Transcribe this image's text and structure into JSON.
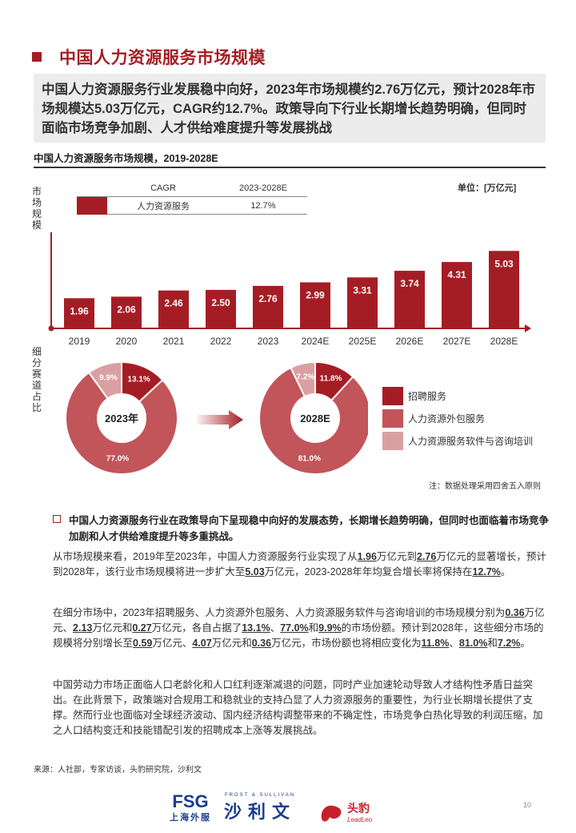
{
  "page": {
    "title": "中国人力资源服务市场规模",
    "summary": "中国人力资源服务行业发展稳中向好，2023年市场规模约2.76万亿元，预计2028年市场规模达5.03万亿元，CAGR约12.7%。政策导向下行业长期增长趋势明确，但同时面临市场竞争加剧、人才供给难度提升等发展挑战",
    "chart_title": "中国人力资源服务市场规模，2019-2028E",
    "left_label_top": "市场规模",
    "left_label_bottom": "细分赛道占比",
    "unit": "单位：[万亿元]",
    "cagr_header": "CAGR",
    "cagr_period": "2023-2028E",
    "cagr_row_label": "人力资源服务",
    "cagr_row_value": "12.7%",
    "note": "注：数据处理采用四舍五入原则",
    "source": "来源：人社部，专家访谈，头豹研究院，沙利文",
    "page_number": "10"
  },
  "chart_data": [
    {
      "type": "bar",
      "categories": [
        "2019",
        "2020",
        "2021",
        "2022",
        "2023",
        "2024E",
        "2025E",
        "2026E",
        "2027E",
        "2028E"
      ],
      "values": [
        1.96,
        2.06,
        2.46,
        2.5,
        2.76,
        2.99,
        3.31,
        3.74,
        4.31,
        5.03
      ],
      "ylabel": "市场规模",
      "unit": "万亿元",
      "color": "#a51d24"
    },
    {
      "type": "pie",
      "title": "2023年",
      "labels": [
        "招聘服务",
        "人力资源外包服务",
        "人力资源服务软件与咨询培训"
      ],
      "values": [
        13.1,
        77.0,
        9.9
      ],
      "value_labels": [
        "13.1%",
        "77.0%",
        "9.9%"
      ],
      "colors": [
        "#a51d24",
        "#c1555a",
        "#daa0a1"
      ]
    },
    {
      "type": "pie",
      "title": "2028E",
      "labels": [
        "招聘服务",
        "人力资源外包服务",
        "人力资源服务软件与咨询培训"
      ],
      "values": [
        11.8,
        81.0,
        7.2
      ],
      "value_labels": [
        "11.8%",
        "81.0%",
        "7.2%"
      ],
      "colors": [
        "#a51d24",
        "#c1555a",
        "#daa0a1"
      ]
    }
  ],
  "pie_legend": [
    {
      "label": "招聘服务",
      "color": "#a51d24"
    },
    {
      "label": "人力资源外包服务",
      "color": "#c1555a"
    },
    {
      "label": "人力资源服务软件与咨询培训",
      "color": "#daa0a1"
    }
  ],
  "bullet": "中国人力资源服务行业在政策导向下呈现稳中向好的发展态势，长期增长趋势明确，但同时也面临着市场竞争加剧和人才供给难度提升等多重挑战。",
  "paragraphs": [
    {
      "segments": [
        {
          "t": "从市场规模来看，2019年至2023年，中国人力资源服务行业实现了从"
        },
        {
          "t": "1.96",
          "u": true
        },
        {
          "t": "万亿元到"
        },
        {
          "t": "2.76",
          "u": true
        },
        {
          "t": "万亿元的显著增长，预计到2028年，该行业市场规模将进一步扩大至"
        },
        {
          "t": "5.03",
          "u": true
        },
        {
          "t": "万亿元，2023-2028年年均复合增长率将保持在"
        },
        {
          "t": "12.7%",
          "u": true
        },
        {
          "t": "。"
        }
      ]
    },
    {
      "segments": [
        {
          "t": "在细分市场中，2023年招聘服务、人力资源外包服务、人力资源服务软件与咨询培训的市场规模分别为"
        },
        {
          "t": "0.36",
          "u": true
        },
        {
          "t": "万亿元、"
        },
        {
          "t": "2.13",
          "u": true
        },
        {
          "t": "万亿元和"
        },
        {
          "t": "0.27",
          "u": true
        },
        {
          "t": "万亿元，各自占据了"
        },
        {
          "t": "13.1%",
          "u": true
        },
        {
          "t": "、"
        },
        {
          "t": "77.0%",
          "u": true
        },
        {
          "t": "和"
        },
        {
          "t": "9.9%",
          "u": true
        },
        {
          "t": "的市场份额。预计到2028年，这些细分市场的规模将分别增长至"
        },
        {
          "t": "0.59",
          "u": true
        },
        {
          "t": "万亿元、"
        },
        {
          "t": "4.07",
          "u": true
        },
        {
          "t": "万亿元和"
        },
        {
          "t": "0.36",
          "u": true
        },
        {
          "t": "万亿元，市场份额也将相应变化为"
        },
        {
          "t": "11.8%",
          "u": true
        },
        {
          "t": "、"
        },
        {
          "t": "81.0%",
          "u": true
        },
        {
          "t": "和"
        },
        {
          "t": "7.2%",
          "u": true
        },
        {
          "t": "。"
        }
      ]
    },
    {
      "segments": [
        {
          "t": "中国劳动力市场正面临人口老龄化和人口红利逐渐减退的问题，同时产业加速轮动导致人才结构性矛盾日益突出。在此背景下，政策端对合规用工和稳就业的支持凸显了人力资源服务的重要性，为行业长期增长提供了支撑。然而行业也面临对全球经济波动、国内经济结构调整带来的不确定性，市场竞争白热化导致的利润压缩，加之人口结构变迁和技能错配引发的招聘成本上涨等发展挑战。"
        }
      ]
    }
  ],
  "logos": {
    "fsg": "FSG",
    "fsg_sub": "上海外服",
    "frost": "FROST & SULLIVAN",
    "shaliwen": "沙利文",
    "leadleo": "头豹",
    "leadleo_sub": "LeadLeo"
  }
}
